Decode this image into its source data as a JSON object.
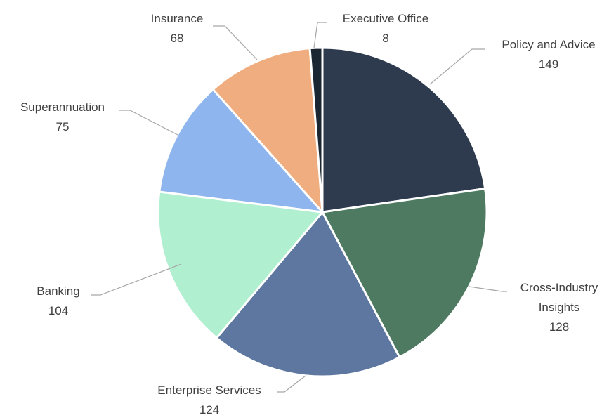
{
  "chart_data": {
    "type": "pie",
    "categories": [
      "Policy and Advice",
      "Cross-Industry Insights",
      "Enterprise Services",
      "Banking",
      "Superannuation",
      "Insurance",
      "Executive Office"
    ],
    "values": [
      149,
      128,
      124,
      104,
      75,
      68,
      8
    ],
    "colors": [
      "#2e3a4e",
      "#4e7a62",
      "#5d77a0",
      "#b0efcf",
      "#8fb5ee",
      "#f0ae80",
      "#1b2633"
    ]
  }
}
